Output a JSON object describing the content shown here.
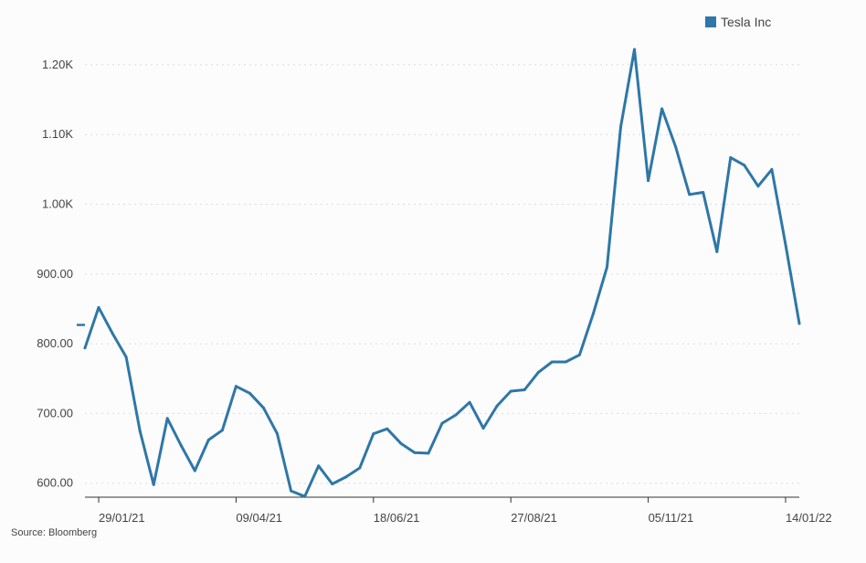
{
  "chart_data": {
    "type": "line",
    "title": "",
    "xlabel": "",
    "ylabel": "",
    "series": [
      {
        "name": "Tesla Inc",
        "color": "#2e77a8",
        "points": [
          [
            "2021-01-22",
            794
          ],
          [
            "2021-01-29",
            852
          ],
          [
            "2021-02-05",
            815
          ],
          [
            "2021-02-12",
            781
          ],
          [
            "2021-02-19",
            675
          ],
          [
            "2021-02-26",
            598
          ],
          [
            "2021-03-05",
            693
          ],
          [
            "2021-03-12",
            654
          ],
          [
            "2021-03-19",
            618
          ],
          [
            "2021-03-26",
            662
          ],
          [
            "2021-04-02",
            676
          ],
          [
            "2021-04-09",
            739
          ],
          [
            "2021-04-16",
            729
          ],
          [
            "2021-04-23",
            708
          ],
          [
            "2021-04-30",
            671
          ],
          [
            "2021-05-07",
            589
          ],
          [
            "2021-05-14",
            581
          ],
          [
            "2021-05-21",
            625
          ],
          [
            "2021-05-28",
            599
          ],
          [
            "2021-06-04",
            609
          ],
          [
            "2021-06-11",
            622
          ],
          [
            "2021-06-18",
            671
          ],
          [
            "2021-06-25",
            678
          ],
          [
            "2021-07-02",
            657
          ],
          [
            "2021-07-09",
            644
          ],
          [
            "2021-07-16",
            643
          ],
          [
            "2021-07-23",
            686
          ],
          [
            "2021-07-30",
            698
          ],
          [
            "2021-08-06",
            716
          ],
          [
            "2021-08-13",
            679
          ],
          [
            "2021-08-20",
            711
          ],
          [
            "2021-08-27",
            732
          ],
          [
            "2021-09-03",
            734
          ],
          [
            "2021-09-10",
            759
          ],
          [
            "2021-09-17",
            774
          ],
          [
            "2021-09-24",
            774
          ],
          [
            "2021-10-01",
            784
          ],
          [
            "2021-10-08",
            843
          ],
          [
            "2021-10-15",
            910
          ],
          [
            "2021-10-22",
            1111
          ],
          [
            "2021-10-29",
            1222
          ],
          [
            "2021-11-05",
            1034
          ],
          [
            "2021-11-12",
            1137
          ],
          [
            "2021-11-19",
            1082
          ],
          [
            "2021-11-26",
            1014
          ],
          [
            "2021-12-03",
            1017
          ],
          [
            "2021-12-10",
            932
          ],
          [
            "2021-12-17",
            1067
          ],
          [
            "2021-12-24",
            1056
          ],
          [
            "2021-12-31",
            1026
          ],
          [
            "2022-01-07",
            1050
          ],
          [
            "2022-01-14",
            942
          ],
          [
            "2022-01-21",
            829
          ]
        ]
      }
    ],
    "reference_marker": 827,
    "x_axis": {
      "type": "date",
      "range": [
        "2021-01-22",
        "2022-01-21"
      ],
      "ticks": [
        {
          "date": "2021-01-29",
          "label": "29/01/21"
        },
        {
          "date": "2021-04-09",
          "label": "09/04/21"
        },
        {
          "date": "2021-06-18",
          "label": "18/06/21"
        },
        {
          "date": "2021-08-27",
          "label": "27/08/21"
        },
        {
          "date": "2021-11-05",
          "label": "05/11/21"
        },
        {
          "date": "2022-01-14",
          "label": "14/01/22"
        }
      ]
    },
    "y_axis": {
      "range": [
        580,
        1230
      ],
      "ticks": [
        {
          "value": 600,
          "label": "600.00"
        },
        {
          "value": 700,
          "label": "700.00"
        },
        {
          "value": 800,
          "label": "800.00"
        },
        {
          "value": 900,
          "label": "900.00"
        },
        {
          "value": 1000,
          "label": "1.00K"
        },
        {
          "value": 1100,
          "label": "1.10K"
        },
        {
          "value": 1200,
          "label": "1.20K"
        }
      ]
    },
    "grid": true,
    "legend": {
      "position": "top-right",
      "label": "Tesla Inc"
    }
  },
  "source": "Source: Bloomberg"
}
